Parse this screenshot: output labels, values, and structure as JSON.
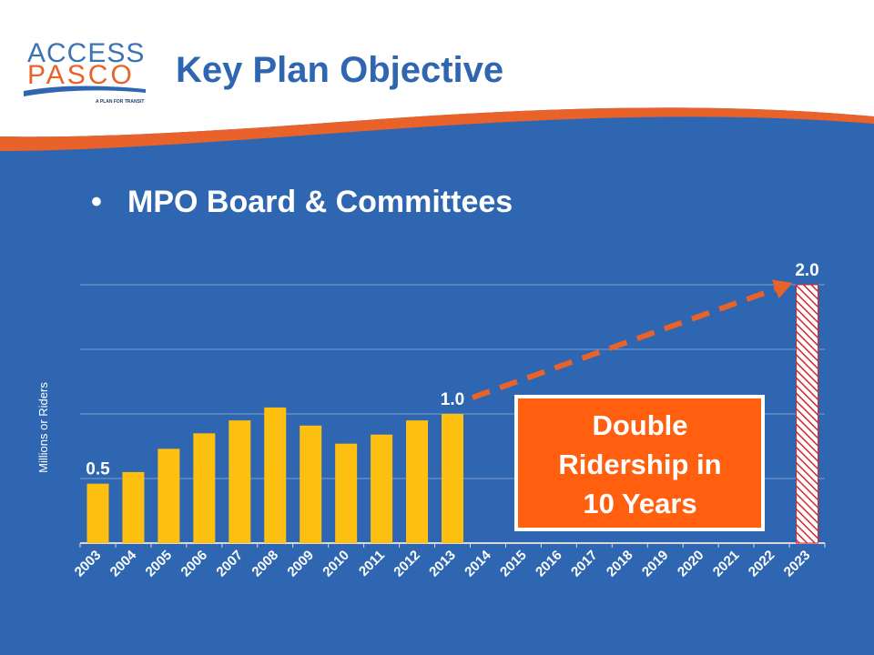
{
  "logo": {
    "line1": "ACCESS",
    "line2": "PASCO",
    "tagline": "A PLAN FOR TRANSIT"
  },
  "header": {
    "title": "Key Plan Objective"
  },
  "bullet": {
    "symbol": "•",
    "text": "MPO Board & Committees"
  },
  "callout": {
    "line1": "Double",
    "line2": "Ridership in",
    "line3": "10 Years"
  },
  "colors": {
    "background": "#2e66b1",
    "header": "#ffffff",
    "title": "#2e66b1",
    "accent_orange": "#e8622a",
    "bar": "#fdc010",
    "target_bar": "#d8242a",
    "callout_fill": "#ff5f0f"
  },
  "chart_data": {
    "type": "bar",
    "ylabel": "Millions or Riders",
    "ylim": [
      0,
      2.0
    ],
    "categories": [
      "2003",
      "2004",
      "2005",
      "2006",
      "2007",
      "2008",
      "2009",
      "2010",
      "2011",
      "2012",
      "2013",
      "2014",
      "2015",
      "2016",
      "2017",
      "2018",
      "2019",
      "2020",
      "2021",
      "2022",
      "2023"
    ],
    "values": [
      0.46,
      0.55,
      0.73,
      0.85,
      0.95,
      1.05,
      0.91,
      0.77,
      0.84,
      0.95,
      1.0,
      null,
      null,
      null,
      null,
      null,
      null,
      null,
      null,
      null,
      2.0
    ],
    "data_labels": [
      {
        "year": "2003",
        "text": "0.5"
      },
      {
        "year": "2013",
        "text": "1.0"
      },
      {
        "year": "2023",
        "text": "2.0"
      }
    ],
    "target_year": "2023",
    "trend_arrow": {
      "from": "2013",
      "to": "2023"
    },
    "grid": true,
    "legend": "none"
  }
}
